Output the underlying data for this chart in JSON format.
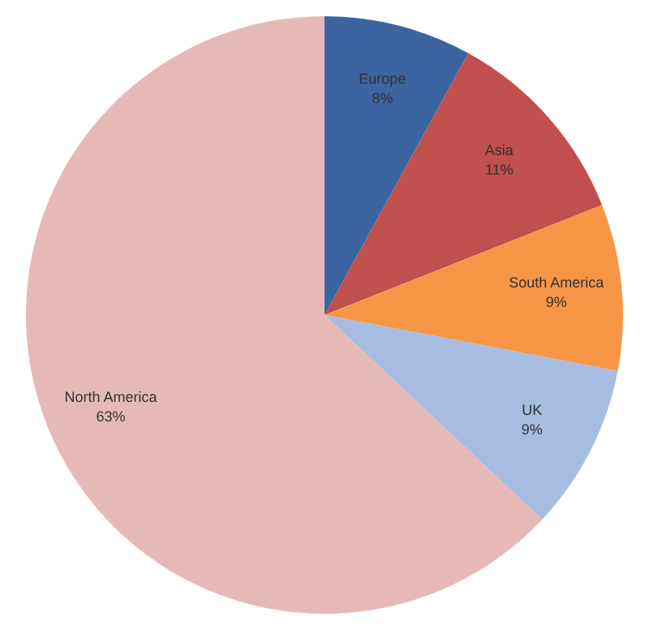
{
  "chart_data": {
    "type": "pie",
    "categories": [
      "Europe",
      "Asia",
      "South America",
      "UK",
      "North America"
    ],
    "values": [
      8,
      11,
      9,
      9,
      63
    ],
    "colors": [
      "#3b64a0",
      "#c0504d",
      "#f79646",
      "#a6bce0",
      "#e6b9b8"
    ],
    "value_labels": [
      "8%",
      "11%",
      "9%",
      "9%",
      "63%"
    ],
    "legend": false
  }
}
